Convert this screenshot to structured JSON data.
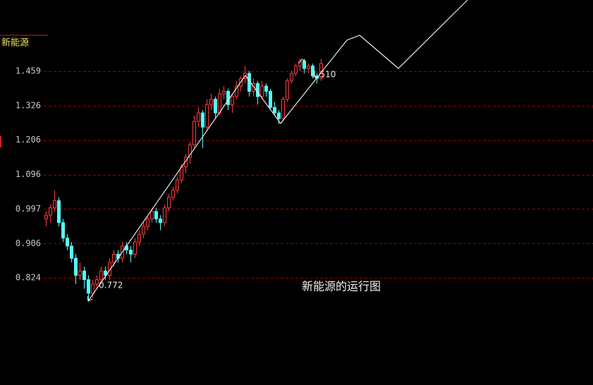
{
  "chart_data": {
    "type": "candlestick",
    "title": "新能源",
    "annotation": "新能源的运行图",
    "low_label": "0.772",
    "high_label": "1.510",
    "log_scale": true,
    "grid": true,
    "up_color": "#ff3c3c",
    "down_color": "#54fcfc",
    "ylim": [
      0.613,
      1.611
    ],
    "yticks": [
      {
        "value": 1.459,
        "label": "1.459"
      },
      {
        "value": 1.326,
        "label": "1.326"
      },
      {
        "value": 1.206,
        "label": "1.206"
      },
      {
        "value": 1.096,
        "label": "1.096"
      },
      {
        "value": 0.997,
        "label": "0.997"
      },
      {
        "value": 0.906,
        "label": "0.906"
      },
      {
        "value": 0.824,
        "label": "0.824"
      }
    ],
    "candles": [
      [
        0.97,
        0.99,
        0.95,
        0.98
      ],
      [
        0.98,
        1.01,
        0.96,
        1.0
      ],
      [
        1.0,
        1.05,
        0.99,
        1.02
      ],
      [
        1.02,
        1.03,
        0.95,
        0.96
      ],
      [
        0.96,
        0.97,
        0.91,
        0.92
      ],
      [
        0.92,
        0.93,
        0.89,
        0.9
      ],
      [
        0.9,
        0.91,
        0.86,
        0.87
      ],
      [
        0.87,
        0.88,
        0.81,
        0.83
      ],
      [
        0.83,
        0.86,
        0.82,
        0.84
      ],
      [
        0.84,
        0.85,
        0.8,
        0.82
      ],
      [
        0.82,
        0.83,
        0.772,
        0.79
      ],
      [
        0.79,
        0.82,
        0.78,
        0.81
      ],
      [
        0.81,
        0.83,
        0.8,
        0.82
      ],
      [
        0.82,
        0.85,
        0.81,
        0.84
      ],
      [
        0.84,
        0.85,
        0.82,
        0.83
      ],
      [
        0.83,
        0.87,
        0.82,
        0.86
      ],
      [
        0.86,
        0.89,
        0.85,
        0.88
      ],
      [
        0.88,
        0.89,
        0.86,
        0.87
      ],
      [
        0.87,
        0.91,
        0.86,
        0.9
      ],
      [
        0.9,
        0.91,
        0.88,
        0.89
      ],
      [
        0.89,
        0.9,
        0.86,
        0.88
      ],
      [
        0.88,
        0.92,
        0.87,
        0.91
      ],
      [
        0.91,
        0.94,
        0.9,
        0.93
      ],
      [
        0.93,
        0.96,
        0.92,
        0.95
      ],
      [
        0.95,
        0.98,
        0.94,
        0.97
      ],
      [
        0.97,
        1.0,
        0.96,
        0.99
      ],
      [
        0.99,
        1.0,
        0.96,
        0.97
      ],
      [
        0.97,
        0.98,
        0.94,
        0.96
      ],
      [
        0.96,
        1.01,
        0.95,
        1.0
      ],
      [
        1.0,
        1.04,
        0.99,
        1.03
      ],
      [
        1.03,
        1.06,
        1.02,
        1.05
      ],
      [
        1.05,
        1.09,
        1.04,
        1.08
      ],
      [
        1.08,
        1.13,
        1.07,
        1.12
      ],
      [
        1.12,
        1.16,
        1.1,
        1.15
      ],
      [
        1.15,
        1.2,
        1.13,
        1.19
      ],
      [
        1.19,
        1.29,
        1.18,
        1.27
      ],
      [
        1.27,
        1.32,
        1.25,
        1.3
      ],
      [
        1.3,
        1.31,
        1.18,
        1.25
      ],
      [
        1.25,
        1.35,
        1.24,
        1.33
      ],
      [
        1.33,
        1.37,
        1.31,
        1.35
      ],
      [
        1.35,
        1.36,
        1.28,
        1.3
      ],
      [
        1.3,
        1.39,
        1.29,
        1.37
      ],
      [
        1.37,
        1.4,
        1.35,
        1.38
      ],
      [
        1.38,
        1.39,
        1.31,
        1.33
      ],
      [
        1.33,
        1.37,
        1.3,
        1.36
      ],
      [
        1.36,
        1.42,
        1.35,
        1.4
      ],
      [
        1.4,
        1.44,
        1.38,
        1.43
      ],
      [
        1.43,
        1.48,
        1.41,
        1.45
      ],
      [
        1.45,
        1.46,
        1.36,
        1.38
      ],
      [
        1.38,
        1.43,
        1.36,
        1.41
      ],
      [
        1.41,
        1.42,
        1.33,
        1.36
      ],
      [
        1.36,
        1.42,
        1.35,
        1.4
      ],
      [
        1.4,
        1.41,
        1.36,
        1.38
      ],
      [
        1.38,
        1.39,
        1.31,
        1.32
      ],
      [
        1.32,
        1.34,
        1.29,
        1.3
      ],
      [
        1.3,
        1.31,
        1.26,
        1.28
      ],
      [
        1.28,
        1.36,
        1.27,
        1.35
      ],
      [
        1.35,
        1.43,
        1.34,
        1.42
      ],
      [
        1.42,
        1.46,
        1.41,
        1.45
      ],
      [
        1.45,
        1.49,
        1.44,
        1.48
      ],
      [
        1.48,
        1.51,
        1.46,
        1.5
      ],
      [
        1.5,
        1.51,
        1.45,
        1.47
      ],
      [
        1.47,
        1.49,
        1.45,
        1.48
      ],
      [
        1.48,
        1.49,
        1.43,
        1.44
      ],
      [
        1.44,
        1.45,
        1.41,
        1.43
      ],
      [
        1.43,
        1.51,
        1.42,
        1.49
      ]
    ]
  }
}
